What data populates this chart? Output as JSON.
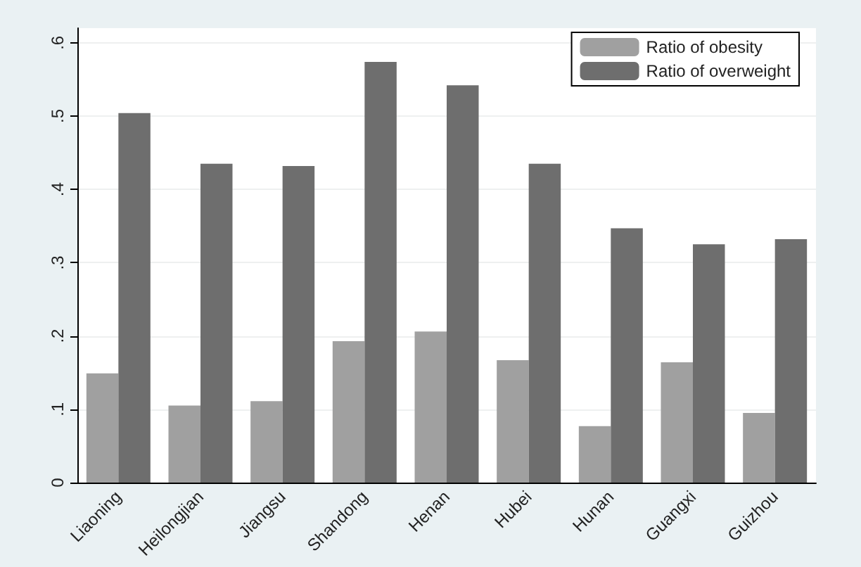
{
  "chart_data": {
    "type": "bar",
    "categories": [
      "Liaoning",
      "Heilongjian",
      "Jiangsu",
      "Shandong",
      "Henan",
      "Hubei",
      "Hunan",
      "Guangxi",
      "Guizhou"
    ],
    "series": [
      {
        "name": "Ratio of obesity",
        "color": "#a0a0a0",
        "values": [
          0.149,
          0.105,
          0.111,
          0.193,
          0.206,
          0.167,
          0.077,
          0.164,
          0.095
        ]
      },
      {
        "name": "Ratio of overweight",
        "color": "#6e6e6e",
        "values": [
          0.504,
          0.435,
          0.432,
          0.574,
          0.542,
          0.435,
          0.347,
          0.325,
          0.332
        ]
      }
    ],
    "ylim": [
      0,
      0.62
    ],
    "yticks": [
      0,
      {
        "value": 0.1,
        "label": ".1"
      },
      {
        "value": 0.2,
        "label": ".2"
      },
      {
        "value": 0.3,
        "label": ".3"
      },
      {
        "value": 0.4,
        "label": ".4"
      },
      {
        "value": 0.5,
        "label": ".5"
      },
      {
        "value": 0.6,
        "label": ".6"
      }
    ],
    "grid": "y",
    "legend": "top right"
  }
}
